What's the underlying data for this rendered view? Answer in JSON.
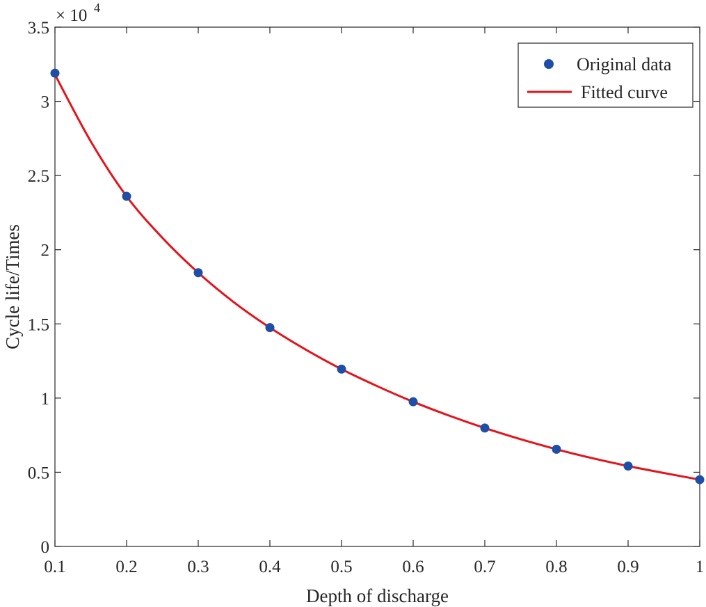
{
  "chart_data": {
    "type": "scatter",
    "xlabel": "Depth of discharge",
    "ylabel": "Cycle life/Times",
    "y_exponent_prefix": "× 10",
    "y_exponent_power": "4",
    "xlim": [
      0.1,
      1.0
    ],
    "ylim": [
      0,
      35000
    ],
    "x_ticks": [
      0.1,
      0.2,
      0.3,
      0.4,
      0.5,
      0.6,
      0.7,
      0.8,
      0.9,
      1.0
    ],
    "x_tick_labels": [
      "0.1",
      "0.2",
      "0.3",
      "0.4",
      "0.5",
      "0.6",
      "0.7",
      "0.8",
      "0.9",
      "1"
    ],
    "y_ticks": [
      0,
      5000,
      10000,
      15000,
      20000,
      25000,
      30000,
      35000
    ],
    "y_tick_labels": [
      "0",
      "0.5",
      "1",
      "1.5",
      "2",
      "2.5",
      "3",
      "3.5"
    ],
    "grid": false,
    "legend_position": "top-right",
    "series": [
      {
        "name": "Original data",
        "kind": "scatter",
        "color": "#1f4ea6",
        "x": [
          0.1,
          0.2,
          0.3,
          0.4,
          0.5,
          0.6,
          0.7,
          0.8,
          0.9,
          1.0
        ],
        "y": [
          31900,
          23600,
          18450,
          14750,
          11950,
          9750,
          7980,
          6550,
          5420,
          4500
        ]
      },
      {
        "name": "Fitted curve",
        "kind": "line",
        "color": "#e3141b",
        "x": [
          0.1,
          0.15,
          0.2,
          0.25,
          0.3,
          0.35,
          0.4,
          0.45,
          0.5,
          0.55,
          0.6,
          0.65,
          0.7,
          0.75,
          0.8,
          0.85,
          0.9,
          0.95,
          1.0
        ],
        "y": [
          31800,
          27300,
          23600,
          20800,
          18450,
          16450,
          14750,
          13270,
          11950,
          10800,
          9750,
          8820,
          7980,
          7230,
          6550,
          5950,
          5420,
          4950,
          4500
        ]
      }
    ]
  }
}
